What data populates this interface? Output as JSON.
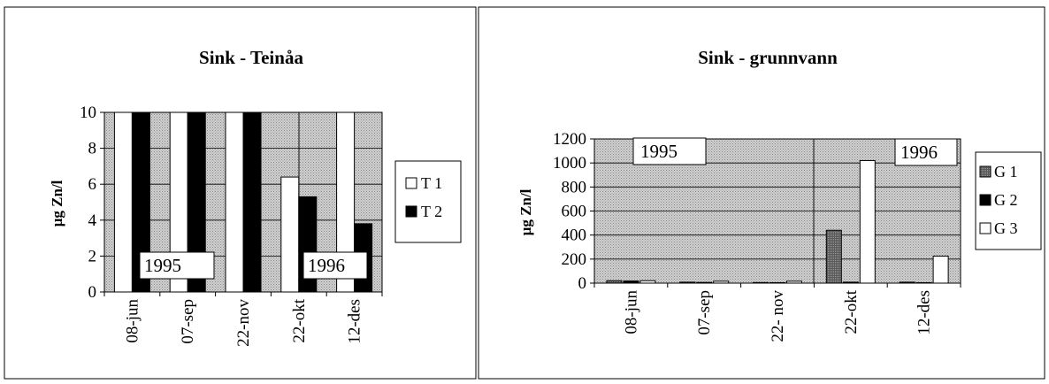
{
  "chart_data": [
    {
      "type": "bar",
      "title": "Sink - Teinåa",
      "ylabel": "µg Zn/l",
      "xlabel": "",
      "ylim": [
        0,
        10
      ],
      "yticks": [
        "0",
        "2",
        "4",
        "6",
        "8",
        "10"
      ],
      "categories": [
        "08-jun",
        "07-sep",
        "22-nov",
        "22-okt",
        "12-des"
      ],
      "series": [
        {
          "name": "T 1",
          "values": [
            10,
            10,
            10,
            6.4,
            10
          ],
          "color": "#ffffff"
        },
        {
          "name": "T 2",
          "values": [
            10,
            10,
            10,
            5.3,
            3.8
          ],
          "color": "#000000"
        }
      ],
      "annotations": [
        "1995",
        "1996"
      ],
      "legend": "right",
      "grid": true
    },
    {
      "type": "bar",
      "title": "Sink - grunnvann",
      "ylabel": "µg Zn/l",
      "xlabel": "",
      "ylim": [
        0,
        1200
      ],
      "yticks": [
        "0",
        "200",
        "400",
        "600",
        "800",
        "1000",
        "1200"
      ],
      "categories": [
        "08-jun",
        "07-sep",
        "22- nov",
        "22-okt",
        "12-des"
      ],
      "series": [
        {
          "name": "G 1",
          "values": [
            20,
            8,
            5,
            440,
            8
          ],
          "color": "#707070"
        },
        {
          "name": "G 2",
          "values": [
            18,
            6,
            4,
            8,
            4
          ],
          "color": "#000000"
        },
        {
          "name": "G 3",
          "values": [
            20,
            16,
            16,
            1020,
            225
          ],
          "color": "#ffffff"
        }
      ],
      "annotations": [
        "1995",
        "1996"
      ],
      "legend": "right",
      "grid": true
    }
  ]
}
